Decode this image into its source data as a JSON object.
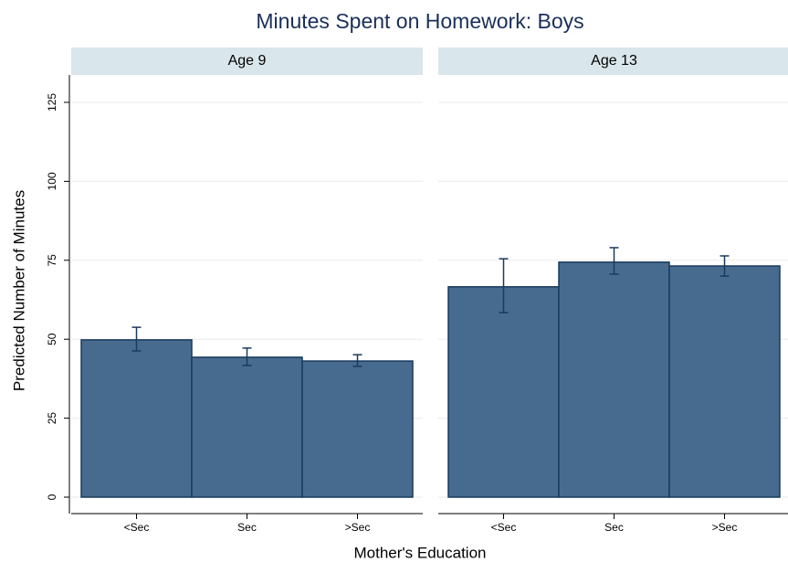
{
  "chart_data": {
    "type": "bar",
    "title": "Minutes Spent on Homework: Boys",
    "x_label": "Mother's Education",
    "y_label": "Predicted Number of Minutes",
    "categories": [
      "<Sec",
      "Sec",
      ">Sec"
    ],
    "ylim": [
      0,
      125
    ],
    "yticks": [
      0,
      25,
      50,
      75,
      100,
      125
    ],
    "grid": true,
    "color": "#476b8e",
    "panels": [
      {
        "name": "Age 9",
        "values": [
          49.8,
          44.3,
          43.1
        ],
        "lower": [
          46.3,
          41.7,
          41.4
        ],
        "upper": [
          53.8,
          47.2,
          45.1
        ]
      },
      {
        "name": "Age 13",
        "values": [
          66.6,
          74.4,
          73.2
        ],
        "lower": [
          58.4,
          70.6,
          70.0
        ],
        "upper": [
          75.5,
          79.0,
          76.4
        ]
      }
    ]
  }
}
